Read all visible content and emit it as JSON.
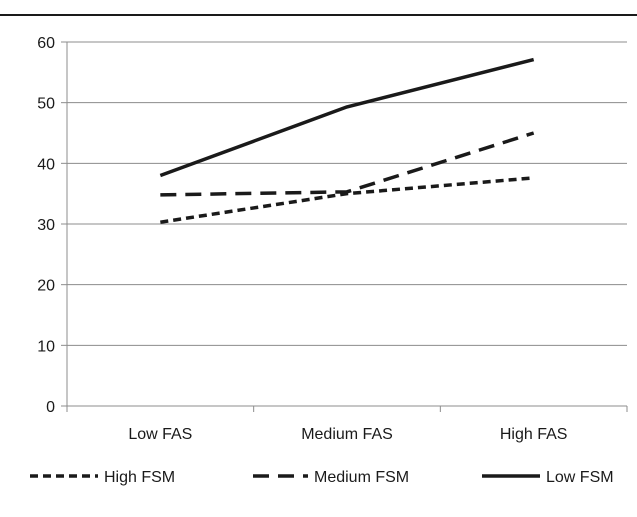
{
  "chart_data": {
    "type": "line",
    "categories": [
      "Low FAS",
      "Medium FAS",
      "High FAS"
    ],
    "ylim": [
      0,
      60
    ],
    "yticks": [
      0,
      10,
      20,
      30,
      40,
      50,
      60
    ],
    "grid": true,
    "legend_position": "bottom",
    "series": [
      {
        "name": "High FSM",
        "values": [
          30.3,
          35.0,
          37.6
        ],
        "dash": "short-dash",
        "color": "#1a1a1a"
      },
      {
        "name": "Medium FSM",
        "values": [
          34.8,
          35.3,
          45.0
        ],
        "dash": "long-dash",
        "color": "#1a1a1a"
      },
      {
        "name": "Low FSM",
        "values": [
          38.0,
          49.3,
          57.1
        ],
        "dash": "solid",
        "color": "#1a1a1a"
      }
    ]
  }
}
